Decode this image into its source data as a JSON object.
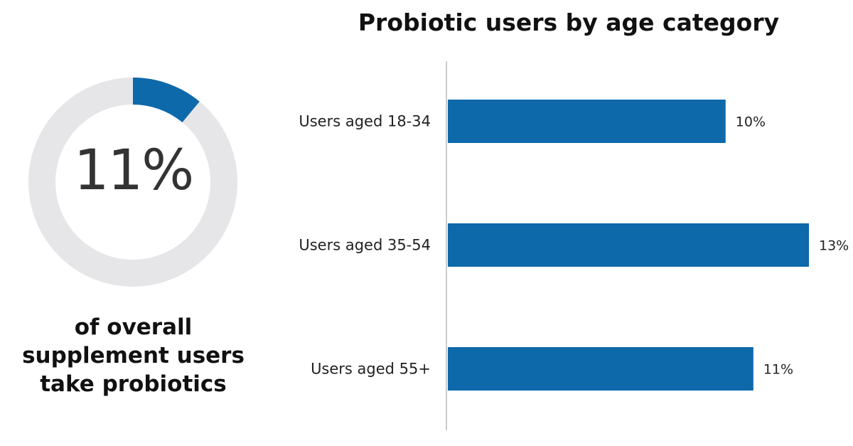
{
  "stat": {
    "value_label": "11%",
    "value": 11,
    "caption_lines": [
      "of overall",
      "supplement users",
      "take probiotics"
    ]
  },
  "colors": {
    "accent": "#0e69ab",
    "track": "#e6e6e8",
    "axis": "#cccccc"
  },
  "chart_data": {
    "type": "bar",
    "orientation": "horizontal",
    "title": "Probiotic users by age category",
    "categories": [
      "Users aged 18-34",
      "Users aged 35-54",
      "Users aged 55+"
    ],
    "values": [
      10,
      13,
      11
    ],
    "value_labels": [
      "10%",
      "13%",
      "11%"
    ],
    "xlim": [
      0,
      13
    ]
  }
}
